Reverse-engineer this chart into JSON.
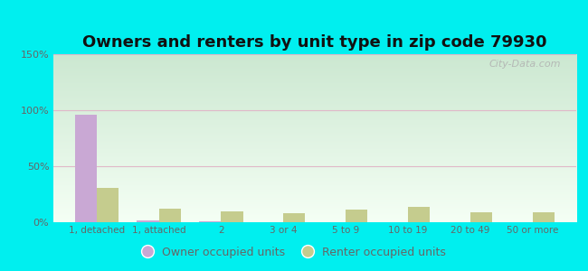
{
  "title": "Owners and renters by unit type in zip code 79930",
  "categories": [
    "1, detached",
    "1, attached",
    "2",
    "3 or 4",
    "5 to 9",
    "10 to 19",
    "20 to 49",
    "50 or more"
  ],
  "owner_values": [
    96,
    2,
    1,
    0,
    0,
    0,
    0,
    0
  ],
  "renter_values": [
    31,
    12,
    10,
    8,
    11,
    14,
    9,
    9
  ],
  "owner_color": "#c9a8d4",
  "renter_color": "#c5cc8e",
  "ylim": [
    0,
    150
  ],
  "yticks": [
    0,
    50,
    100,
    150
  ],
  "ytick_labels": [
    "0%",
    "50%",
    "100%",
    "150%"
  ],
  "background_color": "#00efef",
  "plot_bg_top": "#f5fff5",
  "plot_bg_bottom": "#cce8d0",
  "grid_color": "#e0b8c8",
  "title_fontsize": 13,
  "legend_owner": "Owner occupied units",
  "legend_renter": "Renter occupied units",
  "watermark": "City-Data.com",
  "bar_width": 0.35
}
